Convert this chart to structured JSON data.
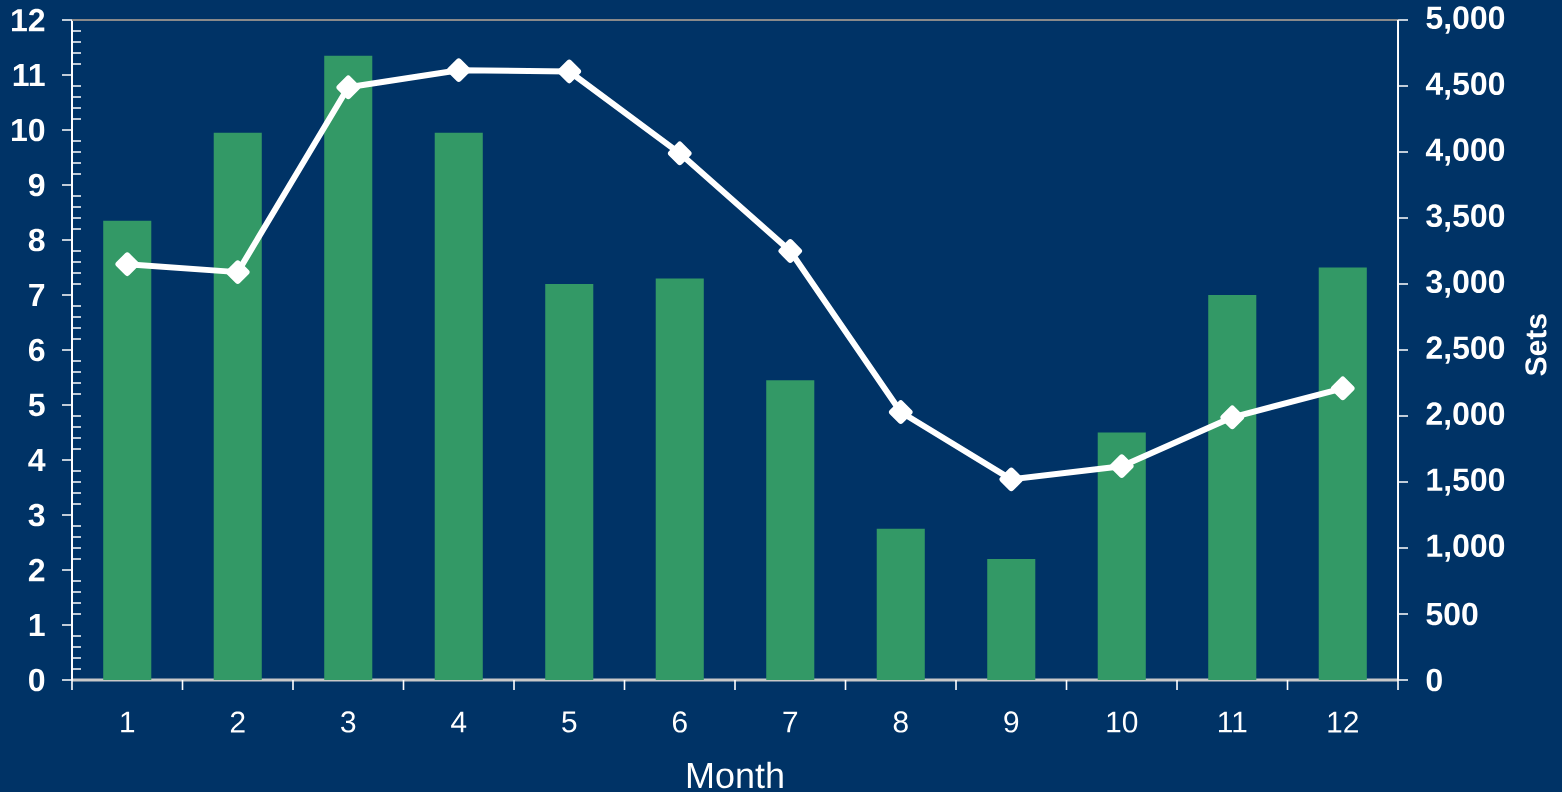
{
  "chart_data": {
    "type": "bar",
    "xlabel": "Month",
    "y2label": "Sets",
    "categories": [
      "1",
      "2",
      "3",
      "4",
      "5",
      "6",
      "7",
      "8",
      "9",
      "10",
      "11",
      "12"
    ],
    "series": [
      {
        "color": "#339966",
        "values": [
          8.35,
          9.95,
          11.35,
          9.95,
          7.2,
          7.3,
          5.45,
          2.75,
          2.2,
          4.5,
          7.0,
          7.5
        ]
      },
      {
        "type": "line",
        "axis": "y2",
        "color": "#ffffff",
        "values": [
          3150,
          3090,
          4490,
          4620,
          4610,
          3990,
          3250,
          2030,
          1520,
          1620,
          1990,
          2210
        ]
      }
    ],
    "ylim": [
      0,
      12
    ],
    "yticks": [
      0,
      {
        "value": 0.2,
        "label": null
      },
      {
        "value": 0.4,
        "label": null
      },
      {
        "value": 0.6,
        "label": null
      },
      {
        "value": 0.8,
        "label": null
      },
      1,
      {
        "value": 1.2,
        "label": null
      },
      {
        "value": 1.4,
        "label": null
      },
      {
        "value": 1.6,
        "label": null
      },
      {
        "value": 1.8,
        "label": null
      },
      2,
      {
        "value": 2.2,
        "label": null
      },
      {
        "value": 2.4,
        "label": null
      },
      {
        "value": 2.6,
        "label": null
      },
      {
        "value": 2.8,
        "label": null
      },
      3,
      {
        "value": 3.2,
        "label": null
      },
      {
        "value": 3.4,
        "label": null
      },
      {
        "value": 3.6,
        "label": null
      },
      {
        "value": 3.8,
        "label": null
      },
      4,
      {
        "value": 4.2,
        "label": null
      },
      {
        "value": 4.4,
        "label": null
      },
      {
        "value": 4.6,
        "label": null
      },
      {
        "value": 4.8,
        "label": null
      },
      5,
      {
        "value": 5.2,
        "label": null
      },
      {
        "value": 5.4,
        "label": null
      },
      {
        "value": 5.6,
        "label": null
      },
      {
        "value": 5.8,
        "label": null
      },
      6,
      {
        "value": 6.2,
        "label": null
      },
      {
        "value": 6.4,
        "label": null
      },
      {
        "value": 6.6,
        "label": null
      },
      {
        "value": 6.8,
        "label": null
      },
      7,
      {
        "value": 7.2,
        "label": null
      },
      {
        "value": 7.4,
        "label": null
      },
      {
        "value": 7.6,
        "label": null
      },
      {
        "value": 7.8,
        "label": null
      },
      8,
      {
        "value": 8.2,
        "label": null
      },
      {
        "value": 8.4,
        "label": null
      },
      {
        "value": 8.6,
        "label": null
      },
      {
        "value": 8.8,
        "label": null
      },
      9,
      {
        "value": 9.2,
        "label": null
      },
      {
        "value": 9.4,
        "label": null
      },
      {
        "value": 9.6,
        "label": null
      },
      {
        "value": 9.8,
        "label": null
      },
      10,
      {
        "value": 10.2,
        "label": null
      },
      {
        "value": 10.4,
        "label": null
      },
      {
        "value": 10.6,
        "label": null
      },
      {
        "value": 10.8,
        "label": null
      },
      11,
      {
        "value": 11.2,
        "label": null
      },
      {
        "value": 11.4,
        "label": null
      },
      {
        "value": 11.6,
        "label": null
      },
      {
        "value": 11.8,
        "label": null
      },
      12
    ],
    "y2lim": [
      0,
      5000
    ],
    "y2ticks": [
      0,
      500,
      {
        "value": 1000,
        "label": "1,000"
      },
      {
        "value": 1500,
        "label": "1,500"
      },
      {
        "value": 2000,
        "label": "2,000"
      },
      {
        "value": 2500,
        "label": "2,500"
      },
      {
        "value": 3000,
        "label": "3,000"
      },
      {
        "value": 3500,
        "label": "3,500"
      },
      {
        "value": 4000,
        "label": "4,000"
      },
      {
        "value": 4500,
        "label": "4,500"
      },
      {
        "value": 5000,
        "label": "5,000"
      }
    ],
    "marker": "diamond",
    "line_style": "solid"
  }
}
